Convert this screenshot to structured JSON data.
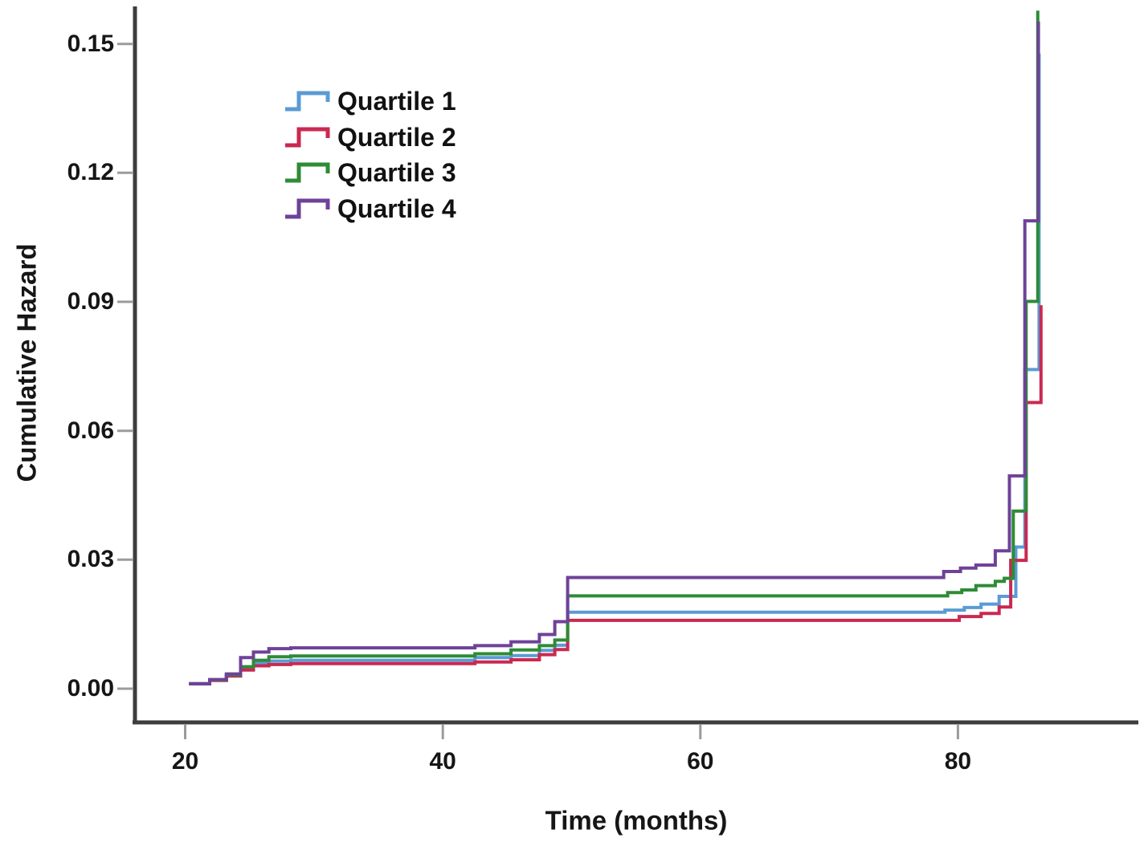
{
  "chart_data": {
    "type": "line",
    "subtype": "step-function-cumulative-hazard",
    "title": "",
    "xlabel": "Time (months)",
    "ylabel": "Cumulative Hazard",
    "xlim": [
      16.1,
      93.7
    ],
    "ylim": [
      -0.008,
      0.159
    ],
    "grid": "off",
    "legend_position": "upper-left-inside",
    "x_ticks": [
      20,
      40,
      60,
      80
    ],
    "x_tick_labels": [
      "20",
      "40",
      "60",
      "80"
    ],
    "y_ticks": [
      0.0,
      0.03,
      0.06,
      0.09,
      0.12,
      0.15
    ],
    "y_tick_labels": [
      "0.00",
      "0.03",
      "0.06",
      "0.09",
      "0.12",
      "0.15"
    ],
    "axis_color": "#3d3d3d",
    "tick_mark_color": "#9b9b9b",
    "series": [
      {
        "name": "Quartile 1",
        "color": "#5B9BD5",
        "steps": [
          [
            20.3,
            0.001
          ],
          [
            21.9,
            0.0019
          ],
          [
            23.2,
            0.003
          ],
          [
            24.3,
            0.0046
          ],
          [
            25.3,
            0.0058
          ],
          [
            26.5,
            0.0063
          ],
          [
            28.2,
            0.0065
          ],
          [
            42.5,
            0.0071
          ],
          [
            45.3,
            0.0076
          ],
          [
            47.5,
            0.0088
          ],
          [
            48.7,
            0.01
          ],
          [
            49.7,
            0.0177
          ],
          [
            79.0,
            0.0182
          ],
          [
            80.5,
            0.0188
          ],
          [
            81.8,
            0.0196
          ],
          [
            83.2,
            0.0214
          ],
          [
            84.5,
            0.0329
          ],
          [
            85.2,
            0.0743
          ],
          [
            86.3,
            0.148
          ]
        ]
      },
      {
        "name": "Quartile 2",
        "color": "#C92950",
        "steps": [
          [
            20.3,
            0.001
          ],
          [
            21.9,
            0.0018
          ],
          [
            23.2,
            0.0028
          ],
          [
            24.3,
            0.0042
          ],
          [
            25.3,
            0.0052
          ],
          [
            26.5,
            0.0055
          ],
          [
            28.2,
            0.0057
          ],
          [
            42.5,
            0.0061
          ],
          [
            45.3,
            0.0066
          ],
          [
            47.5,
            0.0078
          ],
          [
            48.7,
            0.009
          ],
          [
            49.7,
            0.0158
          ],
          [
            80.1,
            0.0167
          ],
          [
            81.8,
            0.0174
          ],
          [
            83.2,
            0.0189
          ],
          [
            84.1,
            0.0298
          ],
          [
            85.3,
            0.0666
          ],
          [
            86.45,
            0.0893
          ]
        ]
      },
      {
        "name": "Quartile 3",
        "color": "#2E8B36",
        "steps": [
          [
            20.3,
            0.001
          ],
          [
            21.9,
            0.0019
          ],
          [
            23.2,
            0.0031
          ],
          [
            24.3,
            0.005
          ],
          [
            25.3,
            0.0065
          ],
          [
            26.5,
            0.0073
          ],
          [
            28.2,
            0.0075
          ],
          [
            42.5,
            0.008
          ],
          [
            45.3,
            0.0089
          ],
          [
            47.5,
            0.0099
          ],
          [
            48.7,
            0.0112
          ],
          [
            49.7,
            0.0215
          ],
          [
            79.2,
            0.0223
          ],
          [
            80.3,
            0.0229
          ],
          [
            81.4,
            0.0239
          ],
          [
            82.9,
            0.0249
          ],
          [
            83.6,
            0.0256
          ],
          [
            84.3,
            0.0413
          ],
          [
            85.3,
            0.0902
          ],
          [
            86.2,
            0.158
          ]
        ]
      },
      {
        "name": "Quartile 4",
        "color": "#6E4299",
        "steps": [
          [
            20.3,
            0.001
          ],
          [
            21.9,
            0.002
          ],
          [
            23.2,
            0.0033
          ],
          [
            24.3,
            0.0071
          ],
          [
            25.3,
            0.0084
          ],
          [
            26.5,
            0.0092
          ],
          [
            28.2,
            0.0094
          ],
          [
            42.5,
            0.0099
          ],
          [
            45.3,
            0.0108
          ],
          [
            47.5,
            0.0125
          ],
          [
            48.7,
            0.0155
          ],
          [
            49.7,
            0.0258
          ],
          [
            78.9,
            0.0272
          ],
          [
            80.2,
            0.028
          ],
          [
            81.4,
            0.0287
          ],
          [
            82.9,
            0.032
          ],
          [
            84.0,
            0.0495
          ],
          [
            85.2,
            0.109
          ],
          [
            86.25,
            0.1555
          ]
        ]
      }
    ]
  }
}
